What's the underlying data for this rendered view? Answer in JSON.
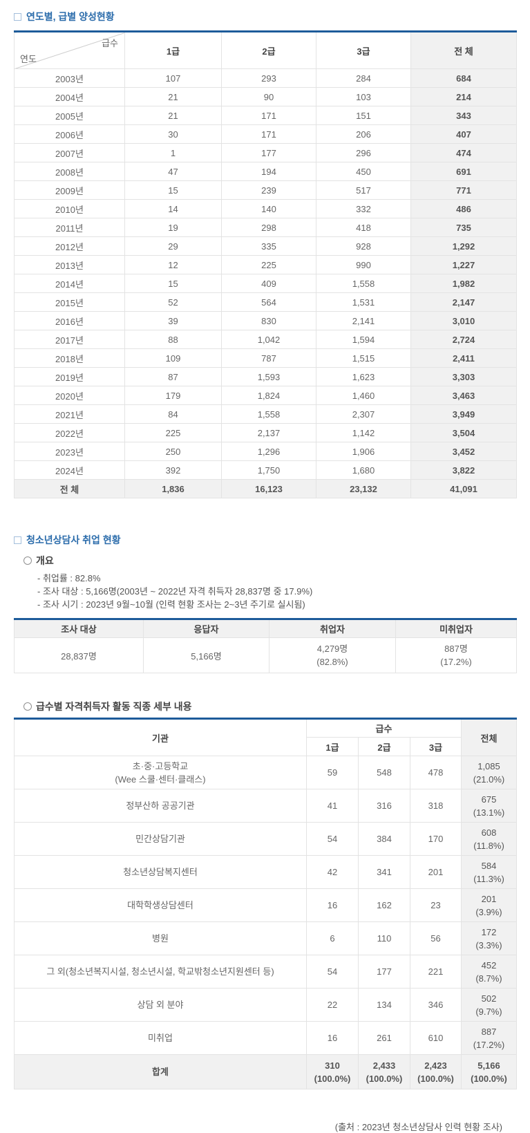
{
  "colors": {
    "accent_blue": "#1d5b9a",
    "title_blue": "#2b6cab",
    "cell_gray": "#f1f1f1"
  },
  "section1": {
    "title": "연도별, 급별 양성현황",
    "table": {
      "corner_top": "급수",
      "corner_bottom": "연도",
      "columns": [
        "1급",
        "2급",
        "3급",
        "전 체"
      ],
      "rows": [
        {
          "year": "2003년",
          "g1": "107",
          "g2": "293",
          "g3": "284",
          "total": "684"
        },
        {
          "year": "2004년",
          "g1": "21",
          "g2": "90",
          "g3": "103",
          "total": "214"
        },
        {
          "year": "2005년",
          "g1": "21",
          "g2": "171",
          "g3": "151",
          "total": "343"
        },
        {
          "year": "2006년",
          "g1": "30",
          "g2": "171",
          "g3": "206",
          "total": "407"
        },
        {
          "year": "2007년",
          "g1": "1",
          "g2": "177",
          "g3": "296",
          "total": "474"
        },
        {
          "year": "2008년",
          "g1": "47",
          "g2": "194",
          "g3": "450",
          "total": "691"
        },
        {
          "year": "2009년",
          "g1": "15",
          "g2": "239",
          "g3": "517",
          "total": "771"
        },
        {
          "year": "2010년",
          "g1": "14",
          "g2": "140",
          "g3": "332",
          "total": "486"
        },
        {
          "year": "2011년",
          "g1": "19",
          "g2": "298",
          "g3": "418",
          "total": "735"
        },
        {
          "year": "2012년",
          "g1": "29",
          "g2": "335",
          "g3": "928",
          "total": "1,292"
        },
        {
          "year": "2013년",
          "g1": "12",
          "g2": "225",
          "g3": "990",
          "total": "1,227"
        },
        {
          "year": "2014년",
          "g1": "15",
          "g2": "409",
          "g3": "1,558",
          "total": "1,982"
        },
        {
          "year": "2015년",
          "g1": "52",
          "g2": "564",
          "g3": "1,531",
          "total": "2,147"
        },
        {
          "year": "2016년",
          "g1": "39",
          "g2": "830",
          "g3": "2,141",
          "total": "3,010"
        },
        {
          "year": "2017년",
          "g1": "88",
          "g2": "1,042",
          "g3": "1,594",
          "total": "2,724"
        },
        {
          "year": "2018년",
          "g1": "109",
          "g2": "787",
          "g3": "1,515",
          "total": "2,411"
        },
        {
          "year": "2019년",
          "g1": "87",
          "g2": "1,593",
          "g3": "1,623",
          "total": "3,303"
        },
        {
          "year": "2020년",
          "g1": "179",
          "g2": "1,824",
          "g3": "1,460",
          "total": "3,463"
        },
        {
          "year": "2021년",
          "g1": "84",
          "g2": "1,558",
          "g3": "2,307",
          "total": "3,949"
        },
        {
          "year": "2022년",
          "g1": "225",
          "g2": "2,137",
          "g3": "1,142",
          "total": "3,504"
        },
        {
          "year": "2023년",
          "g1": "250",
          "g2": "1,296",
          "g3": "1,906",
          "total": "3,452"
        },
        {
          "year": "2024년",
          "g1": "392",
          "g2": "1,750",
          "g3": "1,680",
          "total": "3,822"
        }
      ],
      "total_row": {
        "year": "전 체",
        "g1": "1,836",
        "g2": "16,123",
        "g3": "23,132",
        "total": "41,091"
      }
    }
  },
  "section2": {
    "title": "청소년상담사 취업 현황",
    "overview": {
      "heading": "개요",
      "items": [
        "- 취업률 : 82.8%",
        "- 조사 대상 : 5,166명(2003년 ~ 2022년 자격 취득자 28,837명 중 17.9%)",
        "- 조사 시기 : 2023년 9월~10월 (인력 현황 조사는 2~3년 주기로 실시됨)"
      ]
    },
    "table": {
      "headers": [
        "조사 대상",
        "응답자",
        "취업자",
        "미취업자"
      ],
      "row": {
        "surveyed": "28,837명",
        "respondents": "5,166명",
        "employed": [
          "4,279명",
          "(82.8%)"
        ],
        "unemployed": [
          "887명",
          "(17.2%)"
        ]
      }
    }
  },
  "section3": {
    "title": "급수별 자격취득자 활동 직종 세부 내용",
    "table": {
      "org_header": "기관",
      "group_header": "급수",
      "grade_headers": [
        "1급",
        "2급",
        "3급"
      ],
      "total_header": "전체",
      "rows": [
        {
          "org": [
            "초·중·고등학교",
            "(Wee 스쿨·센터·클래스)"
          ],
          "g1": "59",
          "g2": "548",
          "g3": "478",
          "total": [
            "1,085",
            "(21.0%)"
          ]
        },
        {
          "org": [
            "정부산하 공공기관"
          ],
          "g1": "41",
          "g2": "316",
          "g3": "318",
          "total": [
            "675",
            "(13.1%)"
          ]
        },
        {
          "org": [
            "민간상담기관"
          ],
          "g1": "54",
          "g2": "384",
          "g3": "170",
          "total": [
            "608",
            "(11.8%)"
          ]
        },
        {
          "org": [
            "청소년상담복지센터"
          ],
          "g1": "42",
          "g2": "341",
          "g3": "201",
          "total": [
            "584",
            "(11.3%)"
          ]
        },
        {
          "org": [
            "대학학생상담센터"
          ],
          "g1": "16",
          "g2": "162",
          "g3": "23",
          "total": [
            "201",
            "(3.9%)"
          ]
        },
        {
          "org": [
            "병원"
          ],
          "g1": "6",
          "g2": "110",
          "g3": "56",
          "total": [
            "172",
            "(3.3%)"
          ]
        },
        {
          "org": [
            "그 외(청소년복지시설, 청소년시설, 학교밖청소년지원센터 등)"
          ],
          "g1": "54",
          "g2": "177",
          "g3": "221",
          "total": [
            "452",
            "(8.7%)"
          ]
        },
        {
          "org": [
            "상담 외 분야"
          ],
          "g1": "22",
          "g2": "134",
          "g3": "346",
          "total": [
            "502",
            "(9.7%)"
          ]
        },
        {
          "org": [
            "미취업"
          ],
          "g1": "16",
          "g2": "261",
          "g3": "610",
          "total": [
            "887",
            "(17.2%)"
          ]
        }
      ],
      "total_row": {
        "org": "합계",
        "g1": [
          "310",
          "(100.0%)"
        ],
        "g2": [
          "2,433",
          "(100.0%)"
        ],
        "g3": [
          "2,423",
          "(100.0%)"
        ],
        "total": [
          "5,166",
          "(100.0%)"
        ]
      }
    }
  },
  "footer": {
    "source_note": "(출처 : 2023년 청소년상담사 인력 현황 조사)"
  }
}
